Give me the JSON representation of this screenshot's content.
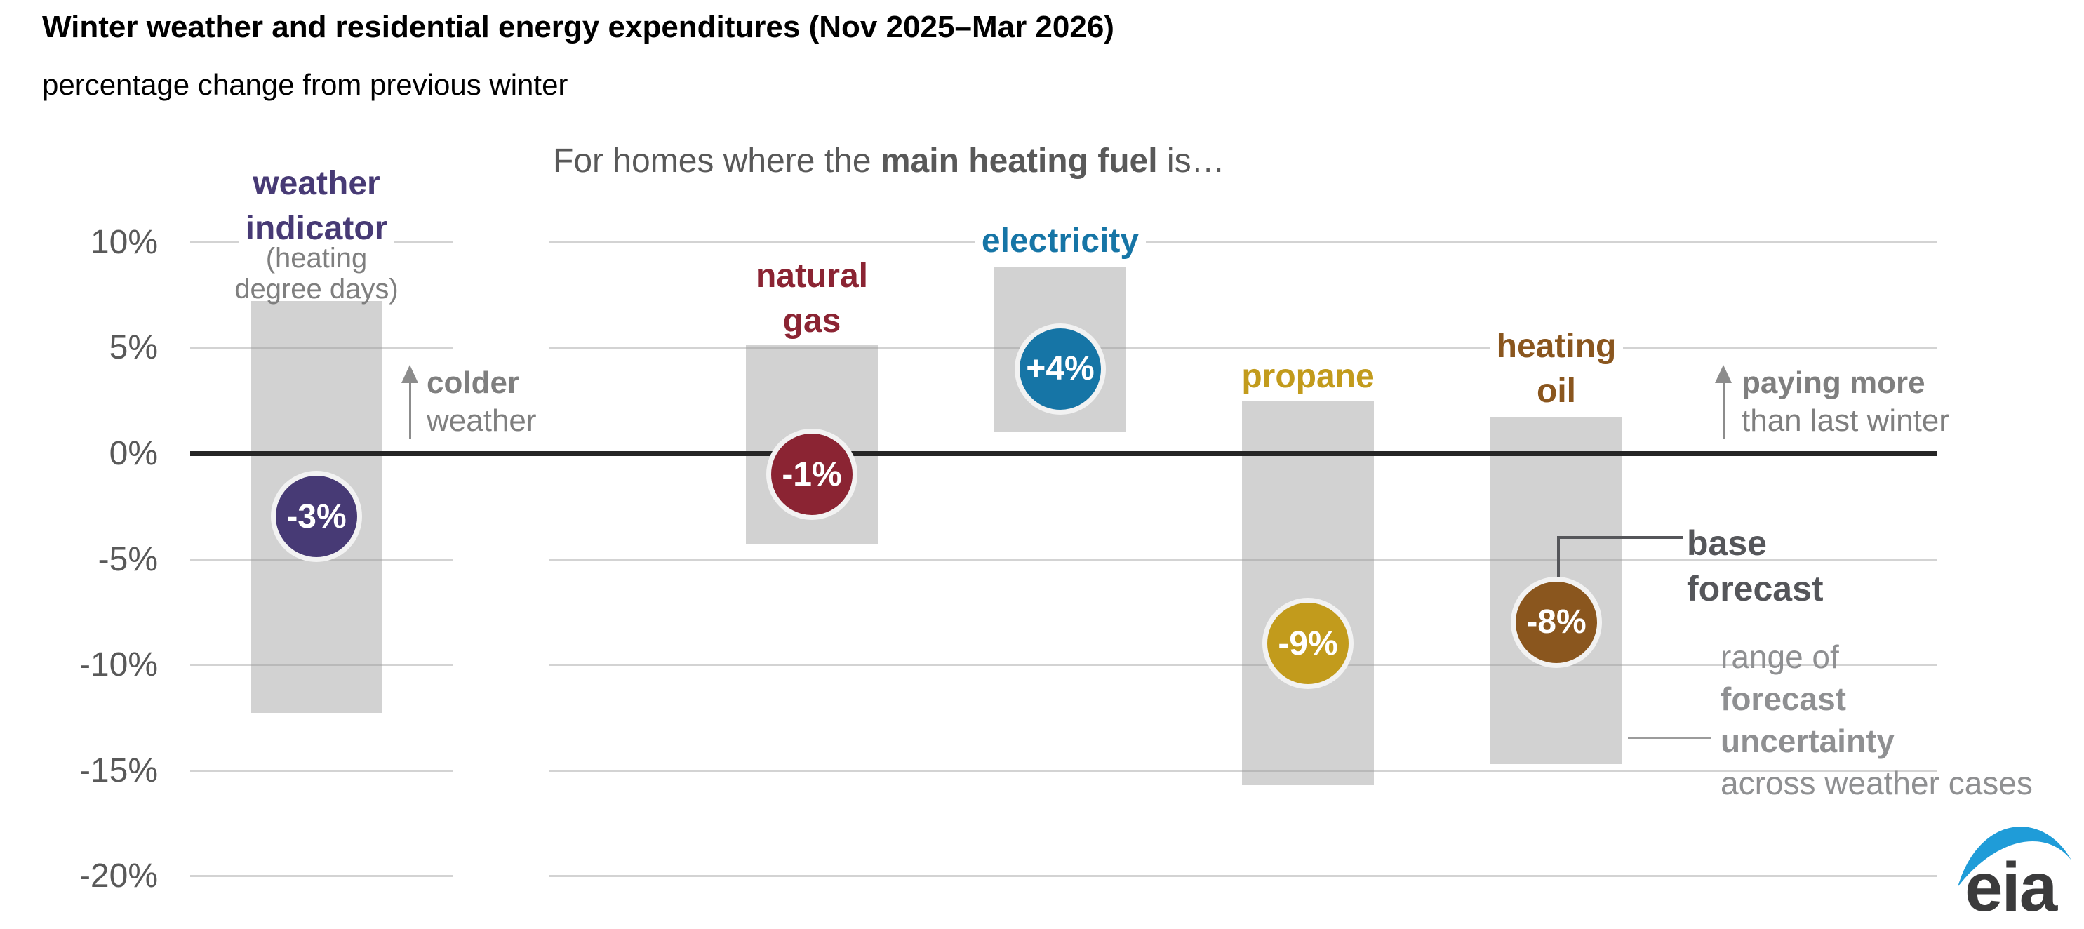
{
  "title": "Winter weather and residential energy expenditures (Nov 2025–Mar 2026)",
  "subtitle": "percentage change from previous winter",
  "panel_header": {
    "prefix": "For homes where the ",
    "bold": "main heating fuel",
    "suffix": " is…"
  },
  "y_axis": {
    "ticks": [
      {
        "label": "10%",
        "value": 10
      },
      {
        "label": "5%",
        "value": 5
      },
      {
        "label": "0%",
        "value": 0
      },
      {
        "label": "-5%",
        "value": -5
      },
      {
        "label": "-10%",
        "value": -10
      },
      {
        "label": "-15%",
        "value": -15
      },
      {
        "label": "-20%",
        "value": -20
      }
    ]
  },
  "annotations": {
    "colder": {
      "line1": "colder",
      "line2": "weather"
    },
    "paying": {
      "line1": "paying more",
      "line2": "than last winter"
    },
    "base_forecast": {
      "line1": "base",
      "line2": "forecast"
    },
    "range_legend": {
      "lines": [
        {
          "text": "range of",
          "bold": false
        },
        {
          "text": "forecast",
          "bold": true
        },
        {
          "text": "uncertainty",
          "bold": true
        },
        {
          "text": "across weather cases",
          "bold": false
        }
      ]
    }
  },
  "logo": {
    "text": "eia",
    "swoosh_color": "#1f9cd8",
    "text_color": "#3b3b3c"
  },
  "colors": {
    "range_bar": "#d2d2d2",
    "gridline": "#d9d9d9",
    "zero_line": "#262626",
    "marker_ring": "#f2f2f2",
    "axis_text": "#595959",
    "note_text": "#7f7f7f",
    "base_forecast_text": "#55565a",
    "range_legend_text": "#8f9092"
  },
  "chart_data": {
    "type": "bar",
    "title": "Winter weather and residential energy expenditures (Nov 2025–Mar 2026)",
    "ylabel": "percentage change from previous winter",
    "ylim": [
      -20,
      10
    ],
    "grid": true,
    "zero_line": true,
    "gridline_values": [
      10,
      5,
      0,
      -5,
      -10,
      -15,
      -20
    ],
    "series": [
      {
        "id": "weather",
        "label": "weather\nindicator",
        "sublabel": "(heating\ndegree days)",
        "base": -3,
        "base_label": "-3%",
        "range_hi": 7.2,
        "range_lo": -12.3,
        "color": "#473a75"
      },
      {
        "id": "natural-gas",
        "label": "natural\ngas",
        "base": -1,
        "base_label": "-1%",
        "range_hi": 5.1,
        "range_lo": -4.3,
        "color": "#8b2433"
      },
      {
        "id": "electricity",
        "label": "electricity",
        "base": 4,
        "base_label": "+4%",
        "range_hi": 8.8,
        "range_lo": 1.0,
        "color": "#1675a6"
      },
      {
        "id": "propane",
        "label": "propane",
        "base": -9,
        "base_label": "-9%",
        "range_hi": 2.5,
        "range_lo": -15.7,
        "color": "#c29b1c"
      },
      {
        "id": "heating-oil",
        "label": "heating\noil",
        "base": -8,
        "base_label": "-8%",
        "range_hi": 1.7,
        "range_lo": -14.7,
        "color": "#8a561e"
      }
    ]
  }
}
